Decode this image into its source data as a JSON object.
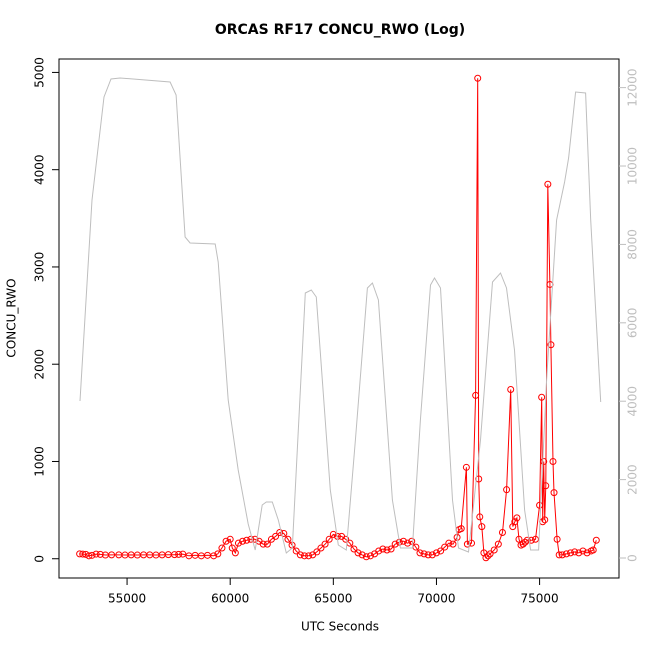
{
  "chart_data": {
    "type": "line",
    "title": "ORCAS RF17 CONCU_RWO (Log)",
    "xlabel": "UTC Seconds",
    "ylabel": "CONCU_RWO",
    "xlim": [
      51700,
      78850
    ],
    "ylim": [
      -198,
      5138
    ],
    "y2lim": [
      -510,
      12730
    ],
    "xticks": [
      55000,
      60000,
      65000,
      70000,
      75000
    ],
    "yticks": [
      0,
      1000,
      2000,
      3000,
      4000,
      5000
    ],
    "y2ticks": [
      0,
      2000,
      4000,
      6000,
      8000,
      10000,
      12000
    ],
    "series": [
      {
        "color": "#ff0000",
        "markers": true,
        "x": [
          52700,
          52850,
          53000,
          53150,
          53300,
          53500,
          53700,
          53950,
          54250,
          54600,
          54900,
          55200,
          55500,
          55800,
          56100,
          56400,
          56700,
          57000,
          57300,
          57500,
          57700,
          58000,
          58300,
          58600,
          58900,
          59200,
          59400,
          59600,
          59800,
          60000,
          60100,
          60250,
          60400,
          60600,
          60800,
          61000,
          61200,
          61400,
          61600,
          61800,
          62000,
          62200,
          62400,
          62600,
          62800,
          63000,
          63200,
          63400,
          63600,
          63800,
          64000,
          64200,
          64400,
          64600,
          64800,
          65000,
          65200,
          65400,
          65600,
          65800,
          66000,
          66200,
          66400,
          66600,
          66800,
          67000,
          67200,
          67400,
          67600,
          67800,
          68000,
          68200,
          68400,
          68600,
          68800,
          69000,
          69200,
          69400,
          69600,
          69800,
          70000,
          70200,
          70400,
          70600,
          70800,
          71000,
          71100,
          71200,
          71450,
          71500,
          71700,
          71900,
          72000,
          72050,
          72100,
          72200,
          72300,
          72400,
          72500,
          72600,
          72800,
          73000,
          73200,
          73400,
          73600,
          73700,
          73800,
          73900,
          74000,
          74100,
          74200,
          74300,
          74400,
          74600,
          74800,
          75000,
          75100,
          75150,
          75200,
          75250,
          75300,
          75400,
          75500,
          75550,
          75650,
          75700,
          75850,
          75950,
          76100,
          76300,
          76500,
          76700,
          76900,
          77100,
          77300,
          77500,
          77600,
          77750
        ],
        "values": [
          50,
          48,
          45,
          30,
          35,
          48,
          45,
          38,
          40,
          40,
          38,
          40,
          38,
          40,
          40,
          38,
          40,
          42,
          42,
          45,
          48,
          30,
          35,
          30,
          35,
          30,
          50,
          110,
          180,
          200,
          110,
          60,
          160,
          180,
          190,
          200,
          200,
          180,
          150,
          150,
          200,
          230,
          270,
          260,
          200,
          140,
          80,
          40,
          30,
          30,
          40,
          70,
          110,
          150,
          200,
          250,
          230,
          230,
          200,
          160,
          100,
          60,
          40,
          20,
          30,
          50,
          80,
          100,
          90,
          100,
          150,
          170,
          180,
          160,
          180,
          120,
          60,
          50,
          40,
          40,
          60,
          80,
          120,
          160,
          150,
          220,
          300,
          310,
          940,
          150,
          160,
          1680,
          4940,
          820,
          430,
          330,
          60,
          10,
          30,
          50,
          90,
          150,
          270,
          710,
          1740,
          330,
          380,
          420,
          200,
          140,
          150,
          170,
          190,
          190,
          200,
          550,
          1660,
          380,
          1000,
          400,
          750,
          3850,
          2820,
          2200,
          1000,
          680,
          200,
          40,
          40,
          50,
          60,
          70,
          60,
          80,
          60,
          80,
          90,
          190
        ]
      },
      {
        "color": "#bebebe",
        "axis": "y2",
        "markers": false,
        "x": [
          52718,
          53300,
          53883,
          54223,
          54660,
          57087,
          57379,
          57816,
          58058,
          59272,
          59417,
          59903,
          60388,
          60874,
          61214,
          61553,
          61748,
          62039,
          62330,
          62718,
          63010,
          63641,
          63932,
          64175,
          64854,
          65243,
          65631,
          66068,
          66650,
          66893,
          67184,
          67864,
          68252,
          68835,
          69223,
          69709,
          69903,
          70194,
          70777,
          71068,
          71553,
          72136,
          72718,
          73107,
          73398,
          73786,
          74272,
          74563,
          74951,
          75340,
          75825,
          76214,
          76408,
          76748,
          77233,
          77476,
          77961
        ],
        "values": [
          4005,
          9130,
          11760,
          12220,
          12245,
          12143,
          11811,
          8189,
          8036,
          8010,
          7551,
          4031,
          2245,
          867,
          204,
          1352,
          1429,
          1429,
          969,
          128,
          255,
          6760,
          6837,
          6658,
          1735,
          332,
          204,
          3010,
          6888,
          7015,
          6582,
          1480,
          255,
          255,
          3520,
          6964,
          7143,
          6888,
          1480,
          255,
          153,
          3010,
          7041,
          7270,
          6888,
          5306,
          1224,
          204,
          204,
          4541,
          8622,
          9592,
          10204,
          11888,
          11862,
          8622,
          3980
        ]
      }
    ]
  }
}
